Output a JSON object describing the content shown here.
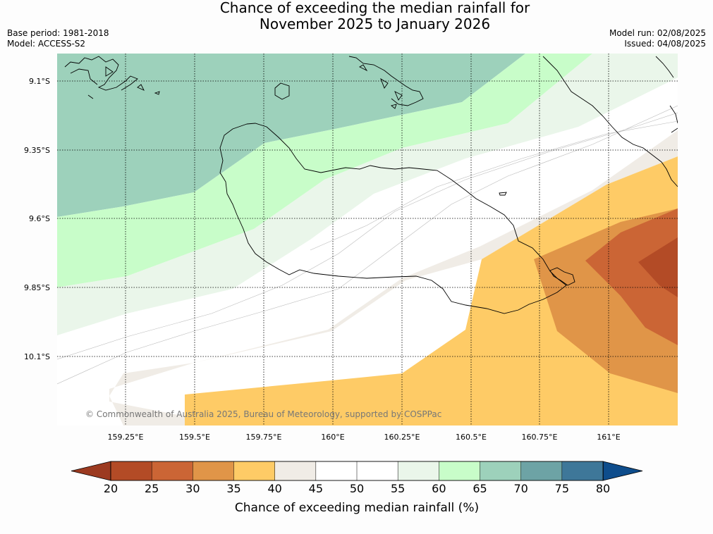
{
  "title_line1": "Chance of exceeding the median rainfall for",
  "title_line2": "November 2025 to January 2026",
  "base_period": "Base period: 1981-2018",
  "model": "Model: ACCESS-S2",
  "model_run": "Model run: 02/08/2025",
  "issued": "Issued: 04/08/2025",
  "copyright": "© Commonwealth of Australia 2025, Bureau of Meteorology, supported by COSPPac",
  "lat_labels": [
    "9.1°S",
    "9.35°S",
    "9.6°S",
    "9.85°S",
    "10.1°S"
  ],
  "lon_labels": [
    "159.25°E",
    "159.5°E",
    "159.75°E",
    "160°E",
    "160.25°E",
    "160.5°E",
    "160.75°E",
    "161°E"
  ],
  "colorbar": {
    "title": "Chance of exceeding median rainfall (%)",
    "ticks": [
      "20",
      "25",
      "30",
      "35",
      "40",
      "45",
      "50",
      "55",
      "60",
      "65",
      "70",
      "75",
      "80"
    ],
    "colors": [
      "#b34b26",
      "#cb6535",
      "#e09548",
      "#fecb66",
      "#f0ece6",
      "#ffffff",
      "#ffffff",
      "#eaf6ea",
      "#c8fdc9",
      "#9dd1bb",
      "#6da3a5",
      "#3e7799"
    ],
    "under_color": "#9c3a20",
    "over_color": "#0e4d8c"
  }
}
